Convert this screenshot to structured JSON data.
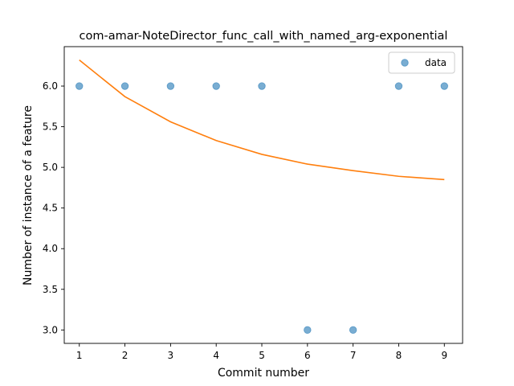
{
  "chart_data": {
    "type": "scatter",
    "title": "com-amar-NoteDirector_func_call_with_named_arg-exponential",
    "xlabel": "Commit number",
    "ylabel": "Number of instance of a feature",
    "xlim": [
      0.67,
      9.4
    ],
    "ylim": [
      2.835,
      6.485
    ],
    "xticks": [
      1,
      2,
      3,
      4,
      5,
      6,
      7,
      8,
      9
    ],
    "xtick_labels": [
      "1",
      "2",
      "3",
      "4",
      "5",
      "6",
      "7",
      "8",
      "9"
    ],
    "yticks": [
      3.0,
      3.5,
      4.0,
      4.5,
      5.0,
      5.5,
      6.0
    ],
    "ytick_labels": [
      "3.0",
      "3.5",
      "4.0",
      "4.5",
      "5.0",
      "5.5",
      "6.0"
    ],
    "grid": false,
    "legend": {
      "position": "top-right",
      "entries": [
        "data"
      ]
    },
    "series": [
      {
        "name": "data",
        "kind": "scatter",
        "color": "#1f77b4",
        "x": [
          1,
          2,
          3,
          4,
          5,
          6,
          7,
          8,
          9
        ],
        "y": [
          6,
          6,
          6,
          6,
          6,
          3,
          3,
          6,
          6
        ]
      },
      {
        "kind": "line",
        "color": "#ff7f0e",
        "x": [
          1,
          2,
          3,
          4,
          5,
          6,
          7,
          8,
          9
        ],
        "y": [
          6.32,
          5.87,
          5.56,
          5.33,
          5.16,
          5.04,
          4.96,
          4.89,
          4.85
        ]
      }
    ]
  }
}
